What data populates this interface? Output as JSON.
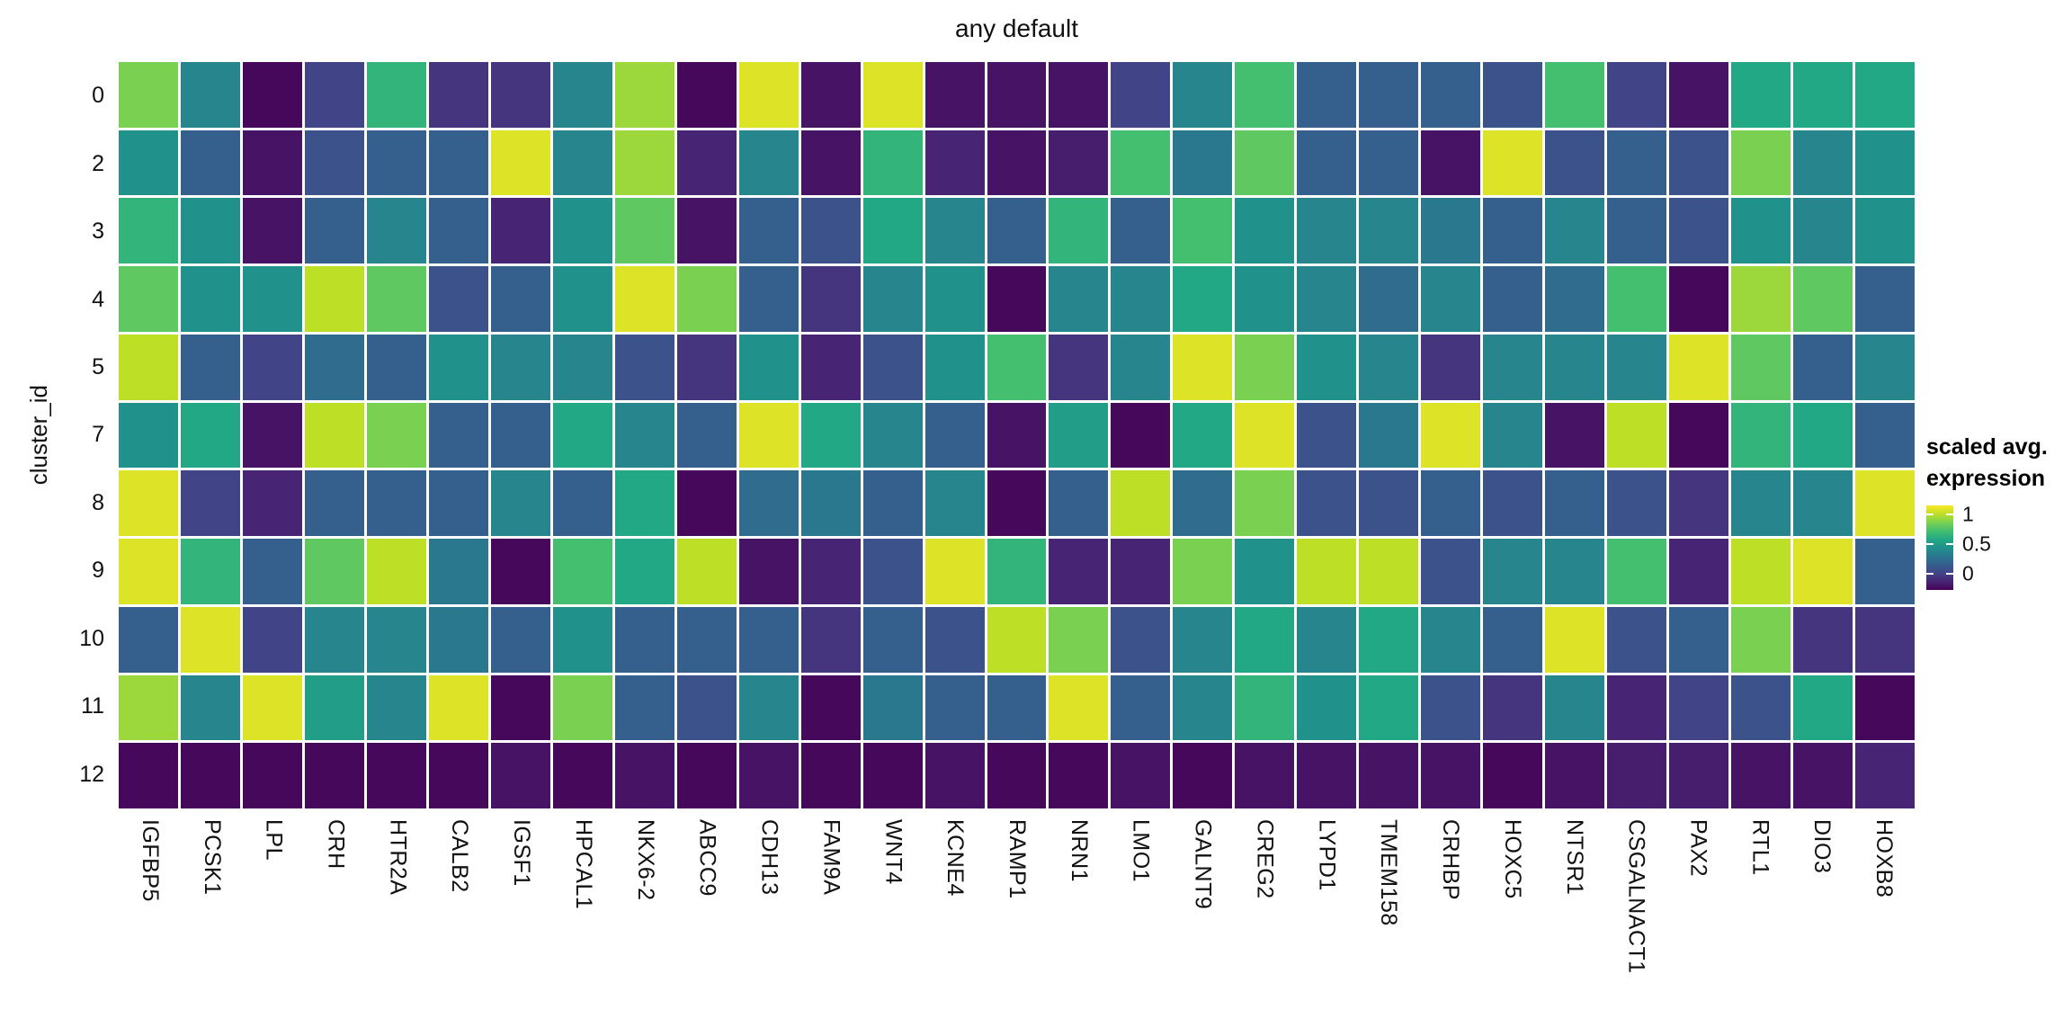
{
  "chart_data": {
    "type": "heatmap",
    "title": "any default",
    "xlabel": "",
    "ylabel": "cluster_id",
    "colormap": "viridis",
    "colormap_anchors": [
      "#440154",
      "#482475",
      "#414487",
      "#355f8d",
      "#2a788e",
      "#21918c",
      "#22a884",
      "#44bf70",
      "#7ad151",
      "#bddf26",
      "#fde725"
    ],
    "value_range": [
      0,
      1
    ],
    "grid": false,
    "legend": {
      "position": "right",
      "title_line1": "scaled avg.",
      "title_line2": "expression",
      "ticks": [
        "1",
        "0.5",
        "0"
      ]
    },
    "rows": [
      "0",
      "2",
      "3",
      "4",
      "5",
      "7",
      "8",
      "9",
      "10",
      "11",
      "12"
    ],
    "categories": [
      "IGFBP5",
      "PCSK1",
      "LPL",
      "CRH",
      "HTR2A",
      "CALB2",
      "IGSF1",
      "HPCAL1",
      "NKX6-2",
      "ABCC9",
      "CDH13",
      "FAM9A",
      "WNT4",
      "KCNE4",
      "RAMP1",
      "NRN1",
      "LMO1",
      "GALNT9",
      "CREG2",
      "LYPD1",
      "TMEM158",
      "CRHBP",
      "HOXC5",
      "NTSR1",
      "CSGALNACT1",
      "PAX2",
      "RTL1",
      "DIO3",
      "HOXB8"
    ],
    "values": [
      [
        0.8,
        0.45,
        0.02,
        0.2,
        0.65,
        0.15,
        0.15,
        0.45,
        0.85,
        0.02,
        0.95,
        0.05,
        0.95,
        0.05,
        0.05,
        0.05,
        0.2,
        0.45,
        0.7,
        0.3,
        0.3,
        0.3,
        0.25,
        0.7,
        0.2,
        0.05,
        0.6,
        0.6,
        0.6
      ],
      [
        0.5,
        0.3,
        0.05,
        0.25,
        0.3,
        0.3,
        0.95,
        0.45,
        0.85,
        0.1,
        0.45,
        0.05,
        0.65,
        0.1,
        0.05,
        0.08,
        0.7,
        0.4,
        0.75,
        0.3,
        0.3,
        0.05,
        0.95,
        0.25,
        0.3,
        0.25,
        0.8,
        0.45,
        0.5
      ],
      [
        0.65,
        0.5,
        0.05,
        0.3,
        0.45,
        0.3,
        0.1,
        0.5,
        0.75,
        0.05,
        0.3,
        0.25,
        0.6,
        0.45,
        0.3,
        0.65,
        0.3,
        0.7,
        0.5,
        0.45,
        0.45,
        0.4,
        0.3,
        0.45,
        0.3,
        0.25,
        0.5,
        0.45,
        0.5
      ],
      [
        0.75,
        0.5,
        0.5,
        0.9,
        0.75,
        0.25,
        0.3,
        0.5,
        0.95,
        0.8,
        0.3,
        0.15,
        0.45,
        0.5,
        0.02,
        0.45,
        0.45,
        0.6,
        0.5,
        0.45,
        0.35,
        0.45,
        0.3,
        0.35,
        0.7,
        0.02,
        0.85,
        0.75,
        0.3
      ],
      [
        0.9,
        0.3,
        0.2,
        0.35,
        0.3,
        0.5,
        0.45,
        0.45,
        0.25,
        0.15,
        0.5,
        0.1,
        0.25,
        0.5,
        0.7,
        0.15,
        0.45,
        0.95,
        0.8,
        0.5,
        0.45,
        0.15,
        0.45,
        0.45,
        0.45,
        0.95,
        0.75,
        0.3,
        0.45
      ],
      [
        0.5,
        0.6,
        0.05,
        0.9,
        0.8,
        0.3,
        0.3,
        0.6,
        0.45,
        0.3,
        0.95,
        0.6,
        0.45,
        0.3,
        0.05,
        0.55,
        0.02,
        0.6,
        0.95,
        0.25,
        0.4,
        0.95,
        0.45,
        0.05,
        0.9,
        0.02,
        0.65,
        0.6,
        0.3
      ],
      [
        0.95,
        0.2,
        0.1,
        0.3,
        0.3,
        0.3,
        0.45,
        0.3,
        0.6,
        0.02,
        0.35,
        0.4,
        0.3,
        0.45,
        0.02,
        0.3,
        0.9,
        0.35,
        0.8,
        0.25,
        0.25,
        0.3,
        0.25,
        0.3,
        0.25,
        0.15,
        0.45,
        0.45,
        0.95
      ],
      [
        0.95,
        0.65,
        0.3,
        0.75,
        0.9,
        0.4,
        0.02,
        0.7,
        0.6,
        0.9,
        0.05,
        0.1,
        0.25,
        0.95,
        0.65,
        0.1,
        0.1,
        0.8,
        0.5,
        0.9,
        0.9,
        0.25,
        0.45,
        0.45,
        0.7,
        0.1,
        0.9,
        0.95,
        0.3
      ],
      [
        0.3,
        0.95,
        0.2,
        0.45,
        0.45,
        0.4,
        0.3,
        0.5,
        0.3,
        0.3,
        0.3,
        0.15,
        0.3,
        0.25,
        0.9,
        0.8,
        0.25,
        0.45,
        0.6,
        0.45,
        0.6,
        0.45,
        0.3,
        0.95,
        0.25,
        0.3,
        0.8,
        0.15,
        0.15
      ],
      [
        0.85,
        0.45,
        0.95,
        0.55,
        0.45,
        0.95,
        0.02,
        0.8,
        0.3,
        0.25,
        0.45,
        0.02,
        0.4,
        0.3,
        0.3,
        0.95,
        0.3,
        0.45,
        0.65,
        0.5,
        0.6,
        0.25,
        0.15,
        0.45,
        0.1,
        0.2,
        0.25,
        0.6,
        0.02
      ],
      [
        0.02,
        0.02,
        0.02,
        0.02,
        0.02,
        0.02,
        0.05,
        0.02,
        0.05,
        0.02,
        0.05,
        0.02,
        0.02,
        0.05,
        0.02,
        0.02,
        0.05,
        0.02,
        0.05,
        0.05,
        0.05,
        0.05,
        0.02,
        0.05,
        0.08,
        0.08,
        0.05,
        0.05,
        0.1
      ]
    ]
  }
}
